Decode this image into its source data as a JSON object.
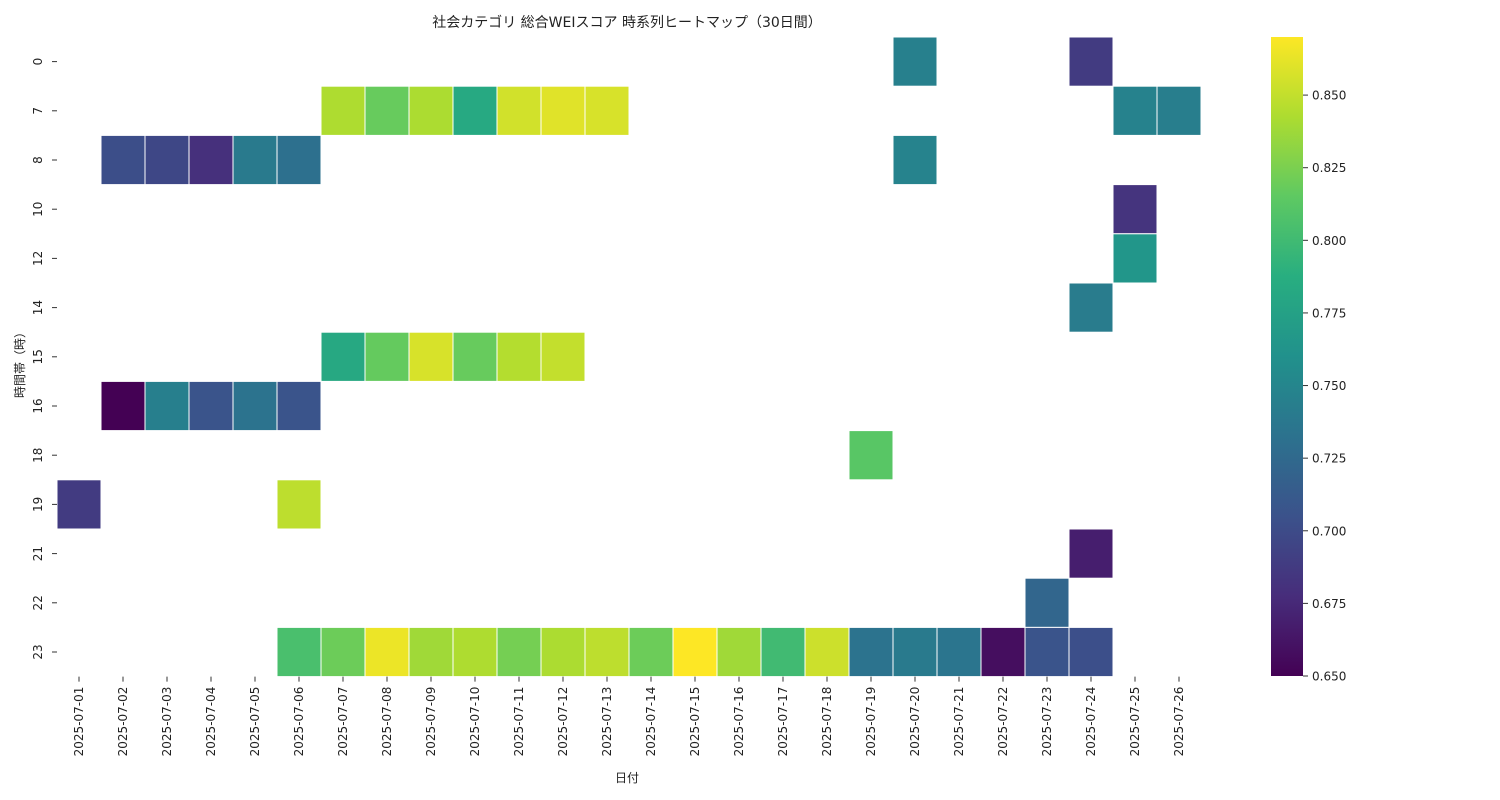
{
  "chart_data": {
    "type": "heatmap",
    "title": "社会カテゴリ 総合WEIスコア 時系列ヒートマップ（30日間）",
    "xlabel": "日付",
    "ylabel": "時間帯（時）",
    "x": [
      "2025-07-01",
      "2025-07-02",
      "2025-07-03",
      "2025-07-04",
      "2025-07-05",
      "2025-07-06",
      "2025-07-07",
      "2025-07-08",
      "2025-07-09",
      "2025-07-10",
      "2025-07-11",
      "2025-07-12",
      "2025-07-13",
      "2025-07-14",
      "2025-07-15",
      "2025-07-16",
      "2025-07-17",
      "2025-07-18",
      "2025-07-19",
      "2025-07-20",
      "2025-07-21",
      "2025-07-22",
      "2025-07-23",
      "2025-07-24",
      "2025-07-25",
      "2025-07-26"
    ],
    "y": [
      "0",
      "7",
      "8",
      "10",
      "12",
      "14",
      "15",
      "16",
      "18",
      "19",
      "21",
      "22",
      "23"
    ],
    "cells": [
      {
        "x": "2025-07-20",
        "y": "0",
        "value": 0.745
      },
      {
        "x": "2025-07-24",
        "y": "0",
        "value": 0.688
      },
      {
        "x": "2025-07-07",
        "y": "7",
        "value": 0.843
      },
      {
        "x": "2025-07-08",
        "y": "7",
        "value": 0.818
      },
      {
        "x": "2025-07-09",
        "y": "7",
        "value": 0.842
      },
      {
        "x": "2025-07-10",
        "y": "7",
        "value": 0.783
      },
      {
        "x": "2025-07-11",
        "y": "7",
        "value": 0.855
      },
      {
        "x": "2025-07-12",
        "y": "7",
        "value": 0.86
      },
      {
        "x": "2025-07-13",
        "y": "7",
        "value": 0.857
      },
      {
        "x": "2025-07-25",
        "y": "7",
        "value": 0.747
      },
      {
        "x": "2025-07-26",
        "y": "7",
        "value": 0.743
      },
      {
        "x": "2025-07-02",
        "y": "8",
        "value": 0.702
      },
      {
        "x": "2025-07-03",
        "y": "8",
        "value": 0.697
      },
      {
        "x": "2025-07-04",
        "y": "8",
        "value": 0.68
      },
      {
        "x": "2025-07-05",
        "y": "8",
        "value": 0.74
      },
      {
        "x": "2025-07-06",
        "y": "8",
        "value": 0.731
      },
      {
        "x": "2025-07-20",
        "y": "8",
        "value": 0.748
      },
      {
        "x": "2025-07-25",
        "y": "10",
        "value": 0.683
      },
      {
        "x": "2025-07-25",
        "y": "12",
        "value": 0.765
      },
      {
        "x": "2025-07-24",
        "y": "14",
        "value": 0.741
      },
      {
        "x": "2025-07-07",
        "y": "15",
        "value": 0.782
      },
      {
        "x": "2025-07-08",
        "y": "15",
        "value": 0.817
      },
      {
        "x": "2025-07-09",
        "y": "15",
        "value": 0.857
      },
      {
        "x": "2025-07-10",
        "y": "15",
        "value": 0.818
      },
      {
        "x": "2025-07-11",
        "y": "15",
        "value": 0.845
      },
      {
        "x": "2025-07-12",
        "y": "15",
        "value": 0.85
      },
      {
        "x": "2025-07-02",
        "y": "16",
        "value": 0.65
      },
      {
        "x": "2025-07-03",
        "y": "16",
        "value": 0.744
      },
      {
        "x": "2025-07-04",
        "y": "16",
        "value": 0.707
      },
      {
        "x": "2025-07-05",
        "y": "16",
        "value": 0.733
      },
      {
        "x": "2025-07-06",
        "y": "16",
        "value": 0.707
      },
      {
        "x": "2025-07-19",
        "y": "18",
        "value": 0.812
      },
      {
        "x": "2025-07-01",
        "y": "19",
        "value": 0.688
      },
      {
        "x": "2025-07-06",
        "y": "19",
        "value": 0.848
      },
      {
        "x": "2025-07-24",
        "y": "21",
        "value": 0.668
      },
      {
        "x": "2025-07-23",
        "y": "22",
        "value": 0.722
      },
      {
        "x": "2025-07-06",
        "y": "23",
        "value": 0.805
      },
      {
        "x": "2025-07-07",
        "y": "23",
        "value": 0.82
      },
      {
        "x": "2025-07-08",
        "y": "23",
        "value": 0.864
      },
      {
        "x": "2025-07-09",
        "y": "23",
        "value": 0.838
      },
      {
        "x": "2025-07-10",
        "y": "23",
        "value": 0.843
      },
      {
        "x": "2025-07-11",
        "y": "23",
        "value": 0.823
      },
      {
        "x": "2025-07-12",
        "y": "23",
        "value": 0.842
      },
      {
        "x": "2025-07-13",
        "y": "23",
        "value": 0.848
      },
      {
        "x": "2025-07-14",
        "y": "23",
        "value": 0.82
      },
      {
        "x": "2025-07-15",
        "y": "23",
        "value": 0.87
      },
      {
        "x": "2025-07-16",
        "y": "23",
        "value": 0.838
      },
      {
        "x": "2025-07-17",
        "y": "23",
        "value": 0.8
      },
      {
        "x": "2025-07-18",
        "y": "23",
        "value": 0.853
      },
      {
        "x": "2025-07-19",
        "y": "23",
        "value": 0.733
      },
      {
        "x": "2025-07-20",
        "y": "23",
        "value": 0.74
      },
      {
        "x": "2025-07-21",
        "y": "23",
        "value": 0.735
      },
      {
        "x": "2025-07-22",
        "y": "23",
        "value": 0.658
      },
      {
        "x": "2025-07-23",
        "y": "23",
        "value": 0.707
      },
      {
        "x": "2025-07-24",
        "y": "23",
        "value": 0.703
      }
    ],
    "colorbar": {
      "colormap": "viridis",
      "range": [
        0.65,
        0.87
      ],
      "ticks": [
        "0.650",
        "0.675",
        "0.700",
        "0.725",
        "0.750",
        "0.775",
        "0.800",
        "0.825",
        "0.850"
      ]
    },
    "grid": false,
    "legend": "colorbar-right"
  }
}
